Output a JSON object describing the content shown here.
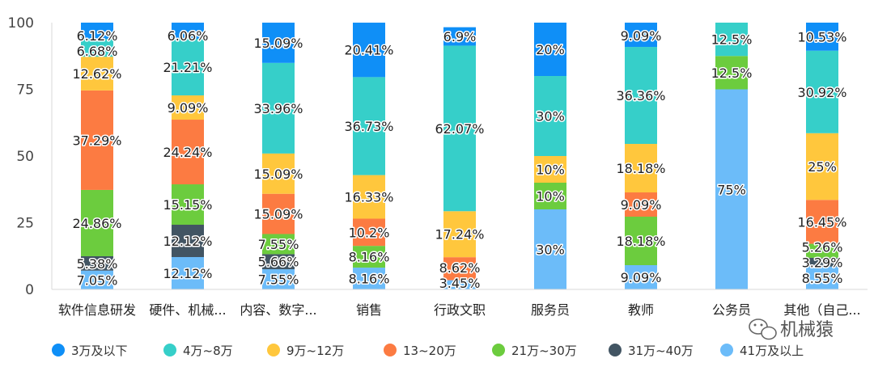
{
  "chart_data": {
    "type": "bar",
    "stacked": true,
    "categories": [
      "软件信息研发",
      "硬件、机械...",
      "内容、数字...",
      "销售",
      "行政文职",
      "服务员",
      "教师",
      "公务员",
      "其他（自己..."
    ],
    "ylim": [
      0,
      100
    ],
    "yticks": [
      "0",
      "25",
      "50",
      "75",
      "100"
    ],
    "grid": false,
    "legend_position": "bottom",
    "series": [
      {
        "name": "41万及以上",
        "color": "#6cbcf9",
        "values": [
          7.05,
          12.12,
          7.55,
          8.16,
          3.45,
          30,
          9.09,
          75,
          8.55
        ]
      },
      {
        "name": "31万~40万",
        "color": "#425563",
        "values": [
          5.38,
          12.12,
          5.66,
          0,
          0,
          0,
          0,
          0,
          3.29
        ]
      },
      {
        "name": "21万~30万",
        "color": "#6ccc3e",
        "values": [
          24.86,
          15.15,
          7.55,
          8.16,
          0,
          10,
          18.18,
          12.5,
          5.26
        ]
      },
      {
        "name": "13~20万",
        "color": "#fc7b42",
        "values": [
          37.29,
          24.24,
          15.09,
          10.2,
          8.62,
          0,
          9.09,
          0,
          16.45
        ]
      },
      {
        "name": "9万~12万",
        "color": "#ffc73d",
        "values": [
          12.62,
          9.09,
          15.09,
          16.33,
          17.24,
          10,
          18.18,
          0,
          25
        ]
      },
      {
        "name": "4万~8万",
        "color": "#36cfc9",
        "values": [
          6.68,
          21.21,
          33.96,
          36.73,
          62.07,
          30,
          36.36,
          12.5,
          30.92
        ]
      },
      {
        "name": "3万及以下",
        "color": "#0f8ff7",
        "values": [
          6.12,
          6.06,
          15.09,
          20.41,
          6.9,
          20,
          9.09,
          0,
          10.53
        ]
      }
    ],
    "legend_order": [
      "3万及以下",
      "4万~8万",
      "9万~12万",
      "13~20万",
      "21万~30万",
      "31万~40万",
      "41万及以上"
    ]
  },
  "watermark": "机械猿"
}
